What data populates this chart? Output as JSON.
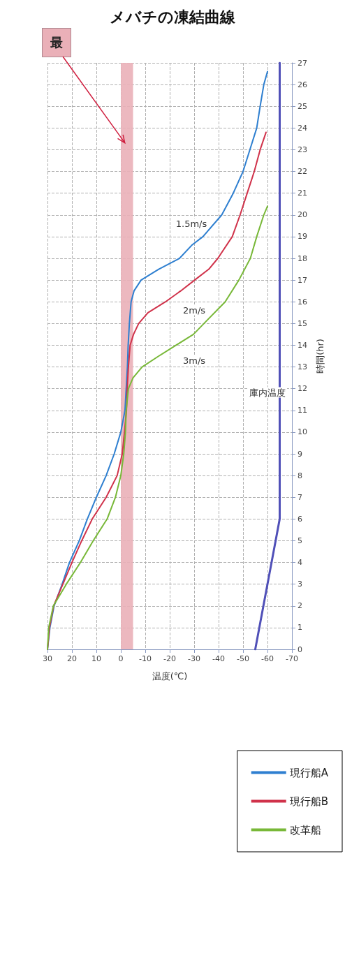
{
  "chart_data": {
    "type": "line",
    "title": "メバチの凍結曲線",
    "xlabel": "温度(℃)",
    "ylabel": "時間(hr)",
    "xlim": [
      30,
      -70
    ],
    "xticks": [
      30,
      20,
      10,
      0,
      -10,
      -20,
      -30,
      -40,
      -50,
      -60,
      -70
    ],
    "ylim": [
      0,
      27
    ],
    "yticks": [
      0,
      1,
      2,
      3,
      4,
      5,
      6,
      7,
      8,
      9,
      10,
      11,
      12,
      13,
      14,
      15,
      16,
      17,
      18,
      19,
      20,
      21,
      22,
      23,
      24,
      25,
      26,
      27
    ],
    "grid": true,
    "legend": "bottom right",
    "line_style": "solid",
    "marker": "none",
    "series": [
      {
        "name": "現行船A",
        "color": "#2e7fd0",
        "x": [
          30,
          29,
          27.3,
          24,
          21,
          17,
          13.7,
          10,
          6,
          2.7,
          0,
          -1.7,
          -2.2,
          -2.7,
          -3,
          -3.5,
          -4.2,
          -5.4,
          -8.3,
          -15.5,
          -24,
          -29,
          -33.6,
          -41.3,
          -46,
          -50,
          -52.8,
          -55.6,
          -57,
          -58.5,
          -60
        ],
        "values": [
          0,
          1,
          2,
          3,
          4,
          5,
          6,
          7,
          8,
          9,
          10,
          11,
          12,
          13,
          14,
          15,
          16,
          16.5,
          17,
          17.5,
          18,
          18.6,
          19,
          20,
          21,
          22,
          23,
          24,
          25,
          26,
          26.6
        ]
      },
      {
        "name": "現行船B",
        "color": "#d0324a",
        "x": [
          30,
          29.2,
          27.5,
          23.7,
          20,
          16,
          11.7,
          6,
          1.5,
          -0.6,
          -1.5,
          -2.3,
          -2.6,
          -3.1,
          -3.8,
          -5.2,
          -7.3,
          -11.1,
          -18.3,
          -24.5,
          -30.2,
          -36,
          -39.7,
          -45.6,
          -48.8,
          -51.7,
          -54.6,
          -57,
          -59.4
        ],
        "values": [
          0,
          1,
          2,
          3,
          4,
          5,
          6,
          7,
          8,
          9,
          10,
          11,
          12,
          13,
          14,
          14.5,
          15,
          15.5,
          16,
          16.5,
          17,
          17.5,
          18,
          19,
          20,
          21,
          22,
          23,
          23.8
        ]
      },
      {
        "name": "改革船",
        "color": "#78b838",
        "x": [
          30,
          29.5,
          27.6,
          22.3,
          16.5,
          11.3,
          5.6,
          2.2,
          0,
          -1.2,
          -1.9,
          -2.2,
          -3.1,
          -5,
          -8.7,
          -15.5,
          -22.6,
          -29.7,
          -34,
          -42.7,
          -48.3,
          -53,
          -55.6,
          -58.5,
          -60
        ],
        "values": [
          0,
          1,
          2,
          3,
          4,
          5,
          6,
          7,
          8,
          9,
          10,
          11,
          12,
          12.5,
          13,
          13.5,
          14,
          14.5,
          15,
          16,
          17,
          18,
          19,
          20,
          20.4
        ]
      },
      {
        "color": "#5050b8",
        "x": [
          -55,
          -65,
          -65
        ],
        "values": [
          0,
          6,
          27
        ]
      }
    ],
    "bands": [
      {
        "axis": "x",
        "from": 0,
        "to": -5,
        "color": "#eab0b8",
        "label": "最"
      }
    ],
    "annotations": [
      "1.5m/s",
      "2m/s",
      "3m/s",
      "庫内温度"
    ]
  }
}
